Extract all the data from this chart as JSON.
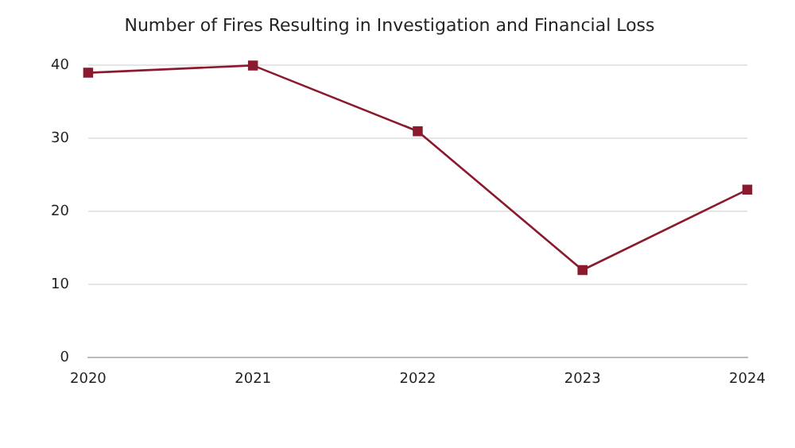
{
  "chart_data": {
    "type": "line",
    "title": "Number of Fires Resulting in Investigation and Financial Loss",
    "categories": [
      "2020",
      "2021",
      "2022",
      "2023",
      "2024"
    ],
    "series": [
      {
        "color": "#8b1a2e",
        "values": [
          39,
          40,
          31,
          12,
          23
        ]
      }
    ],
    "ylim": [
      0,
      40
    ],
    "yticks": [
      0,
      10,
      20,
      30,
      40
    ],
    "grid": "y",
    "legend": false,
    "marker": "square",
    "line_style": "solid"
  }
}
